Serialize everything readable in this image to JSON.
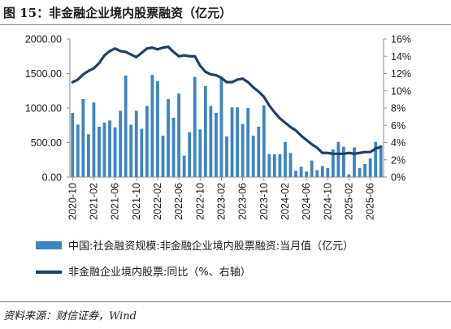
{
  "figure": {
    "title": "图 15：非金融企业境内股票融资（亿元）",
    "source": "资料来源：财信证券，Wind"
  },
  "colors": {
    "bar": "#3c84c4",
    "line": "#1f3f68",
    "axis": "#8c8c8c",
    "rule": "#7f7f7f"
  },
  "chart_data": {
    "type": "bar",
    "secondary_type": "line",
    "categories": [
      "2020-10",
      "2020-11",
      "2020-12",
      "2021-01",
      "2021-02",
      "2021-03",
      "2021-04",
      "2021-05",
      "2021-06",
      "2021-07",
      "2021-08",
      "2021-09",
      "2021-10",
      "2021-11",
      "2021-12",
      "2022-01",
      "2022-02",
      "2022-03",
      "2022-04",
      "2022-05",
      "2022-06",
      "2022-07",
      "2022-08",
      "2022-09",
      "2022-10",
      "2022-11",
      "2022-12",
      "2023-01",
      "2023-02",
      "2023-03",
      "2023-04",
      "2023-05",
      "2023-06",
      "2023-07",
      "2023-08",
      "2023-09",
      "2023-10",
      "2023-11",
      "2023-12",
      "2024-01",
      "2024-02",
      "2024-03",
      "2024-04",
      "2024-05",
      "2024-06",
      "2024-07",
      "2024-08",
      "2024-09",
      "2024-10",
      "2024-11",
      "2024-12",
      "2025-01",
      "2025-02",
      "2025-03",
      "2025-04",
      "2025-05",
      "2025-06",
      "2025-07",
      "2025-08"
    ],
    "x_tick_labels": [
      "2020-10",
      "2021-02",
      "2021-06",
      "2021-10",
      "2022-02",
      "2022-06",
      "2022-10",
      "2023-02",
      "2023-06",
      "2023-10",
      "2024-02",
      "2024-06",
      "2024-10",
      "2025-02",
      "2025-06"
    ],
    "series": [
      {
        "name": "中国:社会融资规模:非金融企业境内股票融资:当月值（亿元）",
        "axis": "left",
        "style": "bar",
        "values": [
          930,
          760,
          1130,
          620,
          1080,
          730,
          790,
          820,
          720,
          960,
          1470,
          760,
          960,
          700,
          1030,
          1480,
          1390,
          600,
          1130,
          860,
          1210,
          310,
          650,
          1450,
          690,
          1320,
          1030,
          930,
          1450,
          590,
          1010,
          1010,
          770,
          1000,
          600,
          730,
          1040,
          330,
          330,
          330,
          510,
          350,
          90,
          150,
          80,
          240,
          100,
          160,
          130,
          400,
          510,
          440,
          40,
          430,
          130,
          190,
          270,
          510,
          460
        ]
      },
      {
        "name": "非金融企业境内股票:同比（%、右轴）",
        "axis": "right",
        "style": "line",
        "values": [
          11.0,
          11.3,
          11.9,
          12.3,
          12.6,
          13.2,
          14.1,
          14.6,
          14.9,
          14.6,
          14.5,
          14.2,
          13.9,
          14.4,
          14.9,
          15.0,
          14.8,
          15.0,
          15.1,
          14.5,
          14.0,
          14.1,
          14.0,
          14.0,
          12.9,
          12.2,
          11.9,
          11.8,
          11.5,
          11.0,
          11.0,
          11.3,
          11.4,
          11.0,
          10.4,
          9.9,
          9.3,
          8.3,
          7.5,
          6.8,
          6.3,
          5.8,
          5.4,
          4.8,
          4.3,
          3.8,
          3.4,
          2.8,
          2.8,
          2.7,
          2.7,
          2.7,
          2.8,
          2.7,
          2.8,
          2.9,
          2.9,
          3.3,
          3.5
        ]
      }
    ],
    "y_left": {
      "ylim": [
        0,
        2000
      ],
      "ticks": [
        "0.00",
        "500.00",
        "1000.00",
        "1500.00",
        "2000.00"
      ]
    },
    "y_right": {
      "ylim": [
        0,
        16
      ],
      "ticks": [
        "0%",
        "2%",
        "4%",
        "6%",
        "8%",
        "10%",
        "12%",
        "14%",
        "16%"
      ]
    },
    "grid": false,
    "legend_position": "bottom"
  }
}
